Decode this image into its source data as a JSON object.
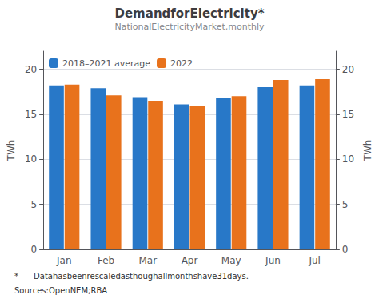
{
  "chart_data": {
    "type": "bar",
    "title": "DemandforElectricity*",
    "subtitle": "NationalElectricityMarket,monthly",
    "ylabel": "TWh",
    "y2label": "TWh",
    "categories": [
      "Jan",
      "Feb",
      "Mar",
      "Apr",
      "May",
      "Jun",
      "Jul"
    ],
    "series": [
      {
        "name": "2018–2021 average",
        "color": "#2878C8",
        "values": [
          18.2,
          17.9,
          16.9,
          16.1,
          16.8,
          18.0,
          18.2
        ]
      },
      {
        "name": "2022",
        "color": "#E8721C",
        "values": [
          18.3,
          17.1,
          16.5,
          15.9,
          17.0,
          18.8,
          18.9
        ]
      }
    ],
    "ylim": [
      0,
      22
    ],
    "yticks": [
      0,
      5,
      10,
      15,
      20
    ],
    "y2lim": [
      0,
      22
    ],
    "y2ticks": [
      0,
      5,
      10,
      15,
      20
    ],
    "grid": true,
    "legend": "upper left",
    "annotations": [
      "*      Datahasbeenrescaledasthoughallmonthshave31days.",
      "Sources:OpenNEM;RBA"
    ]
  }
}
